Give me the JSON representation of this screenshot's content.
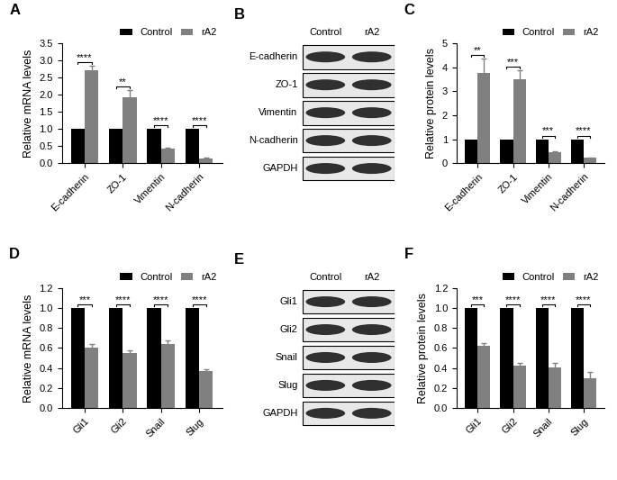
{
  "chart_data": [
    {
      "panel": "A",
      "type": "bar",
      "y_label": "Relative mRNA levels",
      "categories": [
        "E-cadherin",
        "ZO-1",
        "Vimentin",
        "N-cadherin"
      ],
      "series": [
        {
          "name": "Control",
          "color": "#000000",
          "values": [
            1,
            1,
            1,
            1
          ]
        },
        {
          "name": "rA2",
          "color": "#808080",
          "values": [
            2.72,
            1.92,
            0.43,
            0.15
          ],
          "errors": [
            0.12,
            0.22,
            0.02,
            0.02
          ]
        }
      ],
      "significance": [
        "****",
        "**",
        "****",
        "****"
      ],
      "ylim": [
        0,
        3.5
      ],
      "yticks": [
        {
          "value": 0,
          "label": "0.0"
        },
        {
          "value": 0.5,
          "label": "0.5"
        },
        {
          "value": 1,
          "label": "1.0"
        },
        {
          "value": 1.5,
          "label": "1.5"
        },
        {
          "value": 2,
          "label": "2.0"
        },
        {
          "value": 2.5,
          "label": "2.5"
        },
        {
          "value": 3,
          "label": "3.0"
        },
        {
          "value": 3.5,
          "label": "3.5"
        }
      ],
      "legend": "upper right"
    },
    {
      "panel": "C",
      "type": "bar",
      "y_label": "Relative protein levels",
      "categories": [
        "E-cadherin",
        "ZO-1",
        "Vimentin",
        "N-cadherin"
      ],
      "series": [
        {
          "name": "Control",
          "color": "#000000",
          "values": [
            1,
            1,
            1,
            1
          ]
        },
        {
          "name": "rA2",
          "color": "#808080",
          "values": [
            3.75,
            3.48,
            0.45,
            0.22
          ],
          "errors": [
            0.6,
            0.4,
            0.05,
            0.03
          ]
        }
      ],
      "significance": [
        "**",
        "***",
        "***",
        "****"
      ],
      "ylim": [
        0,
        5
      ],
      "yticks": [
        0,
        1,
        2,
        3,
        4,
        5
      ],
      "legend": "upper right"
    },
    {
      "panel": "D",
      "type": "bar",
      "y_label": "Relative mRNA levels",
      "categories": [
        "Gli1",
        "Gli2",
        "Snail",
        "Slug"
      ],
      "series": [
        {
          "name": "Control",
          "color": "#000000",
          "values": [
            1,
            1,
            1,
            1
          ]
        },
        {
          "name": "rA2",
          "color": "#808080",
          "values": [
            0.6,
            0.55,
            0.64,
            0.37
          ],
          "errors": [
            0.04,
            0.03,
            0.04,
            0.02
          ]
        }
      ],
      "significance": [
        "***",
        "****",
        "****",
        "****"
      ],
      "ylim": [
        0,
        1.2
      ],
      "yticks": [
        {
          "value": 0,
          "label": "0.0"
        },
        {
          "value": 0.2,
          "label": "0.2"
        },
        {
          "value": 0.4,
          "label": "0.4"
        },
        {
          "value": 0.6,
          "label": "0.6"
        },
        {
          "value": 0.8,
          "label": "0.8"
        },
        {
          "value": 1,
          "label": "1.0"
        },
        {
          "value": 1.2,
          "label": "1.2"
        }
      ],
      "legend": "upper right"
    },
    {
      "panel": "F",
      "type": "bar",
      "y_label": "Relative protein levels",
      "categories": [
        "Gli1",
        "Gli2",
        "Snail",
        "Slug"
      ],
      "series": [
        {
          "name": "Control",
          "color": "#000000",
          "values": [
            1,
            1,
            1,
            1
          ]
        },
        {
          "name": "rA2",
          "color": "#808080",
          "values": [
            0.62,
            0.42,
            0.41,
            0.3
          ],
          "errors": [
            0.03,
            0.03,
            0.04,
            0.06
          ]
        }
      ],
      "significance": [
        "***",
        "****",
        "****",
        "****"
      ],
      "ylim": [
        0,
        1.2
      ],
      "yticks": [
        {
          "value": 0,
          "label": "0.0"
        },
        {
          "value": 0.2,
          "label": "0.2"
        },
        {
          "value": 0.4,
          "label": "0.4"
        },
        {
          "value": 0.6,
          "label": "0.6"
        },
        {
          "value": 0.8,
          "label": "0.8"
        },
        {
          "value": 1,
          "label": "1.0"
        },
        {
          "value": 1.2,
          "label": "1.2"
        }
      ],
      "legend": "upper right"
    }
  ],
  "blots": [
    {
      "panel": "B",
      "columns": [
        "Control",
        "rA2"
      ],
      "rows": [
        "E-cadherin",
        "ZO-1",
        "Vimentin",
        "N-cadherin",
        "GAPDH"
      ]
    },
    {
      "panel": "E",
      "columns": [
        "Control",
        "rA2"
      ],
      "rows": [
        "Gli1",
        "Gli2",
        "Snail",
        "Slug",
        "GAPDH"
      ]
    }
  ]
}
